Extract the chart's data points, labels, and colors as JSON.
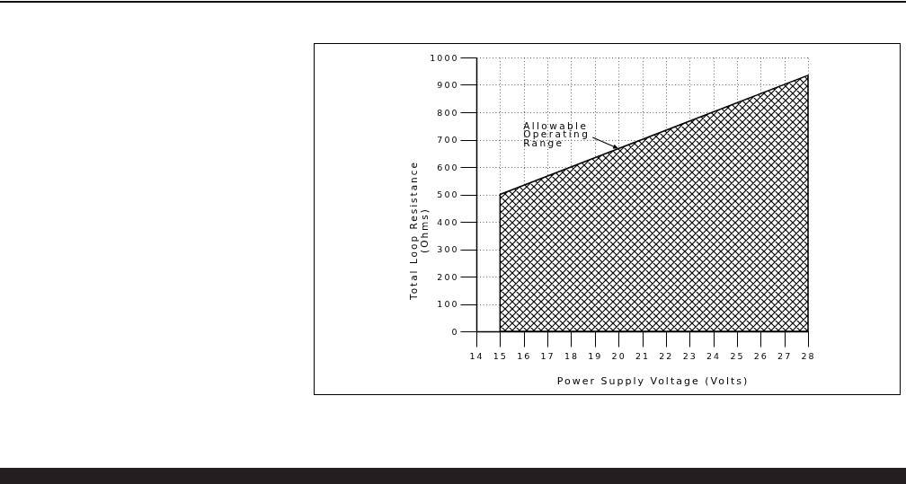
{
  "chart_data": {
    "type": "area",
    "xlabel": "Power Supply Voltage (Volts)",
    "ylabel": "Total Loop Resistance (Ohms)",
    "x": [
      15,
      28
    ],
    "values": [
      500,
      935
    ],
    "color": "#000000",
    "xlim": [
      14,
      28
    ],
    "xticks": [
      14,
      15,
      16,
      17,
      18,
      19,
      20,
      21,
      22,
      23,
      24,
      25,
      26,
      27,
      28
    ],
    "ylim": [
      0,
      1000
    ],
    "yticks": [
      0,
      100,
      200,
      300,
      400,
      500,
      600,
      700,
      800,
      900,
      1000
    ],
    "grid": true,
    "annotations": [
      {
        "text": "Allowable Operating Range",
        "x": 20,
        "y": 667
      }
    ]
  }
}
